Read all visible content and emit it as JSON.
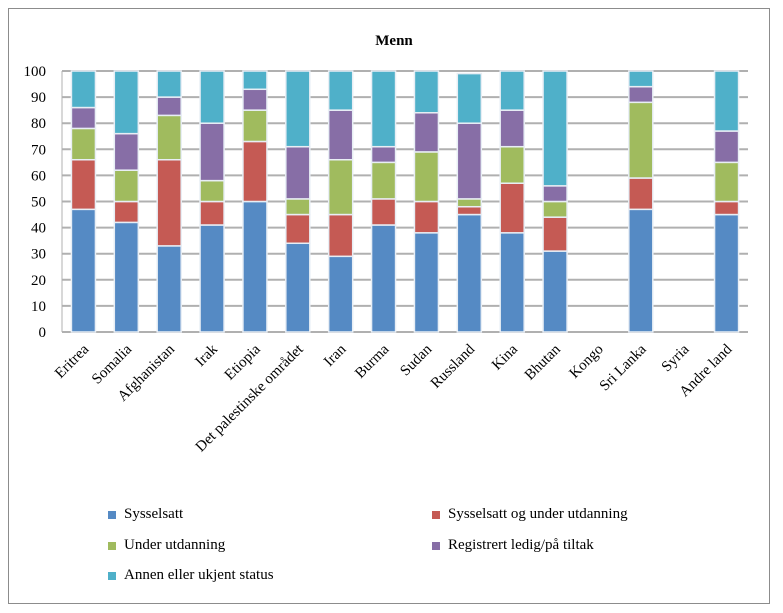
{
  "chart_data": {
    "type": "stacked-bar",
    "title": "Menn",
    "xlabel": "",
    "ylabel": "",
    "ylim": [
      0,
      100
    ],
    "yticks": [
      0,
      10,
      20,
      30,
      40,
      50,
      60,
      70,
      80,
      90,
      100
    ],
    "grid": true,
    "legend_placement": "bottom",
    "categories": [
      "Eritrea",
      "Somalia",
      "Afghanistan",
      "Irak",
      "Etiopia",
      "Det palestinske området",
      "Iran",
      "Burma",
      "Sudan",
      "Russland",
      "Kina",
      "Bhutan",
      "Kongo",
      "Sri Lanka",
      "Syria",
      "Andre land"
    ],
    "series": [
      {
        "name": "Sysselsatt",
        "color": "#558ac4",
        "values": [
          47,
          42,
          33,
          41,
          50,
          34,
          29,
          41,
          38,
          45,
          38,
          31,
          null,
          47,
          null,
          45
        ]
      },
      {
        "name": "Sysselsatt og under utdanning",
        "color": "#c55a54",
        "values": [
          19,
          8,
          33,
          9,
          23,
          11,
          16,
          10,
          12,
          3,
          19,
          13,
          null,
          12,
          null,
          5
        ]
      },
      {
        "name": "Under utdanning",
        "color": "#a0bb5e",
        "values": [
          12,
          12,
          17,
          8,
          12,
          6,
          21,
          14,
          19,
          3,
          14,
          6,
          null,
          29,
          null,
          15
        ]
      },
      {
        "name": "Registrert ledig/på tiltak",
        "color": "#876ea6",
        "values": [
          8,
          14,
          7,
          22,
          8,
          20,
          19,
          6,
          15,
          29,
          14,
          6,
          null,
          6,
          null,
          12
        ]
      },
      {
        "name": "Annen eller ukjent status",
        "color": "#4fb0c9",
        "values": [
          14,
          24,
          10,
          20,
          7,
          29,
          15,
          29,
          16,
          19,
          15,
          44,
          null,
          6,
          null,
          23
        ]
      }
    ]
  }
}
